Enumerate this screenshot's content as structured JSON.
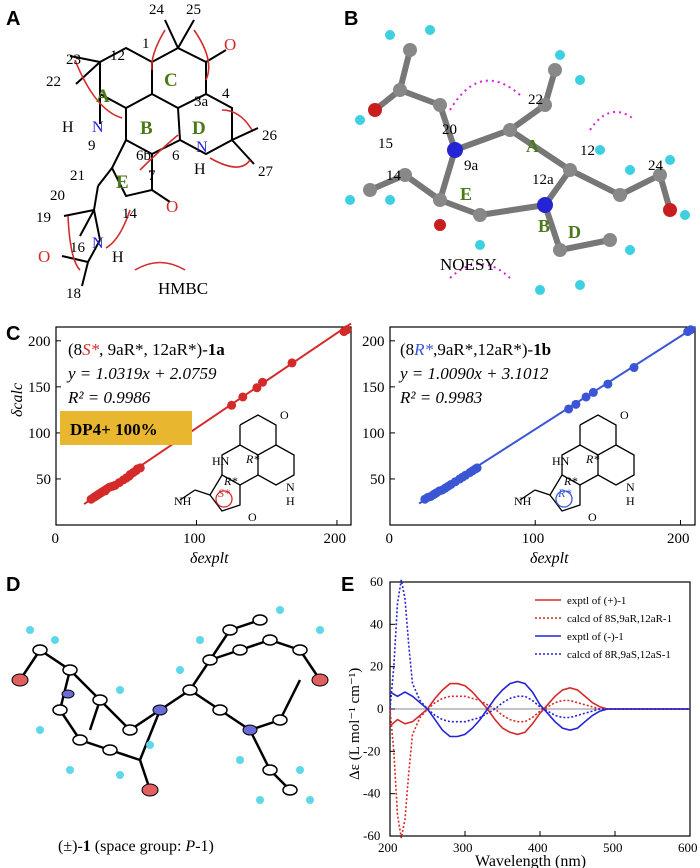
{
  "panels": {
    "a": {
      "label": "A",
      "ring_labels": [
        "A",
        "B",
        "C",
        "D",
        "E"
      ],
      "atom_numbers": [
        "24",
        "25",
        "1",
        "23",
        "12",
        "3a",
        "4",
        "22",
        "9",
        "6b",
        "6",
        "26",
        "27",
        "7",
        "21",
        "20",
        "19",
        "14",
        "16",
        "18"
      ],
      "heteroatoms": [
        "N",
        "H",
        "N",
        "H",
        "N",
        "H",
        "O",
        "O",
        "O"
      ],
      "legend": "HMBC"
    },
    "b": {
      "label": "B",
      "atom_numbers": [
        "22",
        "20",
        "15",
        "12",
        "9a",
        "12a",
        "14",
        "24"
      ],
      "ring_labels": [
        "A",
        "B",
        "D",
        "E"
      ],
      "legend": "NOESY"
    },
    "c": {
      "label": "C",
      "left": {
        "title_prefix": "(8",
        "title_config": "S*",
        "title_rest": ", 9aR*, 12aR*)-",
        "title_compound": "1a",
        "equation": "y = 1.0319x + 2.0759",
        "r2": "R² = 0.9986",
        "dp4": "DP4+ 100%",
        "y_axis_label": "δcalc",
        "x_axis_label": "δexplt",
        "struct_labels": [
          "R*",
          "R*",
          "S*",
          "HN",
          "NH",
          "O",
          "O",
          "N",
          "H"
        ],
        "color": "#d42a2a"
      },
      "right": {
        "title_prefix": "(8",
        "title_config": "R*",
        "title_rest": ",9aR*,12aR*)-",
        "title_compound": "1b",
        "equation": "y = 1.0090x + 3.1012",
        "r2": "R² = 0.9983",
        "x_axis_label": "δexplt",
        "struct_labels": [
          "R*",
          "R*",
          "R*",
          "HN",
          "NH",
          "O",
          "O",
          "N",
          "H"
        ],
        "color": "#3a56d4"
      },
      "x_ticks": [
        "0",
        "100",
        "200"
      ],
      "y_ticks": [
        "50",
        "100",
        "150",
        "200"
      ]
    },
    "d": {
      "label": "D",
      "caption_prefix": "(±)-",
      "caption_compound": "1",
      "caption_rest": " (space group: ",
      "caption_group": "P",
      "caption_end": "-1)"
    },
    "e": {
      "label": "E",
      "y_axis_label": "Δε (L mol⁻¹ cm⁻¹)",
      "x_axis_label": "Wavelength (nm)",
      "legend": [
        {
          "text": "exptl of (+)-1",
          "color": "#d42a2a",
          "dash": "solid"
        },
        {
          "text": "calcd of 8S,9aR,12aR-1",
          "color": "#d42a2a",
          "dash": "dotted"
        },
        {
          "text": "exptl of (-)-1",
          "color": "#2424d4",
          "dash": "solid"
        },
        {
          "text": "calcd of 8R,9aS,12aS-1",
          "color": "#2424d4",
          "dash": "dotted"
        }
      ]
    }
  },
  "chart_data": [
    {
      "type": "scatter",
      "panel": "C-left",
      "xlabel": "δexplt",
      "ylabel": "δcalc",
      "xlim": [
        0,
        210
      ],
      "ylim": [
        0,
        215
      ],
      "fit": {
        "slope": 1.0319,
        "intercept": 2.0759
      },
      "x": [
        25,
        27,
        28,
        29,
        30,
        31,
        32,
        33,
        34,
        35,
        36,
        38,
        40,
        42,
        45,
        48,
        50,
        52,
        53,
        55,
        57,
        58,
        60,
        125,
        133,
        143,
        147,
        168,
        205,
        207
      ],
      "y": [
        28,
        30,
        31,
        32,
        33,
        34,
        35,
        36,
        37,
        37,
        39,
        41,
        42,
        43,
        46,
        49,
        51,
        53,
        55,
        57,
        59,
        61,
        62,
        130,
        139,
        149,
        155,
        176,
        210,
        212
      ]
    },
    {
      "type": "scatter",
      "panel": "C-right",
      "xlabel": "δexplt",
      "xlim": [
        0,
        210
      ],
      "ylim": [
        0,
        215
      ],
      "fit": {
        "slope": 1.009,
        "intercept": 3.1012
      },
      "x": [
        24,
        26,
        28,
        30,
        31,
        32,
        34,
        36,
        38,
        40,
        42,
        45,
        48,
        50,
        52,
        55,
        57,
        59,
        60,
        123,
        128,
        135,
        140,
        150,
        168,
        205,
        207
      ],
      "y": [
        28,
        30,
        31,
        33,
        34,
        35,
        37,
        38,
        40,
        42,
        44,
        47,
        50,
        52,
        54,
        57,
        59,
        61,
        62,
        126,
        131,
        139,
        144,
        153,
        171,
        210,
        212
      ]
    },
    {
      "type": "line",
      "panel": "E",
      "xlabel": "Wavelength (nm)",
      "ylabel": "Δε (L mol⁻¹ cm⁻¹)",
      "xlim": [
        200,
        600
      ],
      "ylim": [
        -60,
        60
      ],
      "x_ticks": [
        200,
        300,
        400,
        500,
        600
      ],
      "y_ticks": [
        60,
        40,
        20,
        0,
        -20,
        -40,
        -60
      ],
      "series": [
        {
          "name": "exptl of (+)-1",
          "color": "#d42a2a",
          "dash": "solid",
          "x": [
            200,
            210,
            220,
            230,
            240,
            250,
            260,
            270,
            280,
            290,
            300,
            310,
            320,
            330,
            340,
            350,
            360,
            370,
            380,
            390,
            400,
            410,
            420,
            430,
            440,
            450,
            460,
            470,
            480,
            490,
            500,
            520,
            550,
            580,
            600
          ],
          "y": [
            -8,
            -5,
            -7,
            -6,
            -3,
            0,
            5,
            9,
            12,
            12,
            11,
            8,
            4,
            0,
            -5,
            -9,
            -11,
            -12,
            -11,
            -7,
            -2,
            2,
            6,
            9,
            10,
            9,
            6,
            3,
            1,
            0,
            0,
            0,
            0,
            0,
            0
          ]
        },
        {
          "name": "calcd of 8S,9aR,12aR-1",
          "color": "#d42a2a",
          "dash": "dotted",
          "x": [
            200,
            205,
            210,
            215,
            220,
            225,
            230,
            240,
            250,
            260,
            270,
            280,
            290,
            300,
            310,
            320,
            330,
            340,
            350,
            360,
            370,
            380,
            390,
            400,
            410,
            420,
            430,
            440,
            450,
            460,
            470,
            480,
            500,
            550,
            600
          ],
          "y": [
            0,
            -20,
            -50,
            -61,
            -52,
            -30,
            -12,
            -4,
            0,
            3,
            5,
            6,
            6,
            6,
            5,
            4,
            2,
            0,
            -3,
            -5,
            -6,
            -6,
            -4,
            -1,
            1,
            3,
            4,
            4,
            3,
            2,
            1,
            0,
            0,
            0,
            0
          ]
        },
        {
          "name": "exptl of (-)-1",
          "color": "#2424d4",
          "dash": "solid",
          "x": [
            200,
            210,
            220,
            230,
            240,
            250,
            260,
            270,
            280,
            290,
            300,
            310,
            320,
            330,
            340,
            350,
            360,
            370,
            380,
            390,
            400,
            410,
            420,
            430,
            440,
            450,
            460,
            470,
            480,
            490,
            500,
            520,
            550,
            580,
            600
          ],
          "y": [
            8,
            6,
            8,
            6,
            3,
            0,
            -5,
            -10,
            -13,
            -13,
            -12,
            -9,
            -5,
            0,
            5,
            9,
            12,
            13,
            12,
            8,
            2,
            -2,
            -6,
            -9,
            -10,
            -9,
            -6,
            -3,
            -1,
            0,
            0,
            0,
            0,
            0,
            0
          ]
        },
        {
          "name": "calcd of 8R,9aS,12aS-1",
          "color": "#2424d4",
          "dash": "dotted",
          "x": [
            200,
            205,
            210,
            215,
            220,
            225,
            230,
            240,
            250,
            260,
            270,
            280,
            290,
            300,
            310,
            320,
            330,
            340,
            350,
            360,
            370,
            380,
            390,
            400,
            410,
            420,
            430,
            440,
            450,
            460,
            470,
            480,
            500,
            550,
            600
          ],
          "y": [
            0,
            20,
            50,
            61,
            52,
            30,
            12,
            4,
            0,
            -3,
            -5,
            -6,
            -6,
            -6,
            -5,
            -4,
            -2,
            0,
            3,
            5,
            6,
            6,
            4,
            1,
            -1,
            -3,
            -4,
            -4,
            -3,
            -2,
            -1,
            0,
            0,
            0,
            0
          ]
        }
      ]
    }
  ]
}
